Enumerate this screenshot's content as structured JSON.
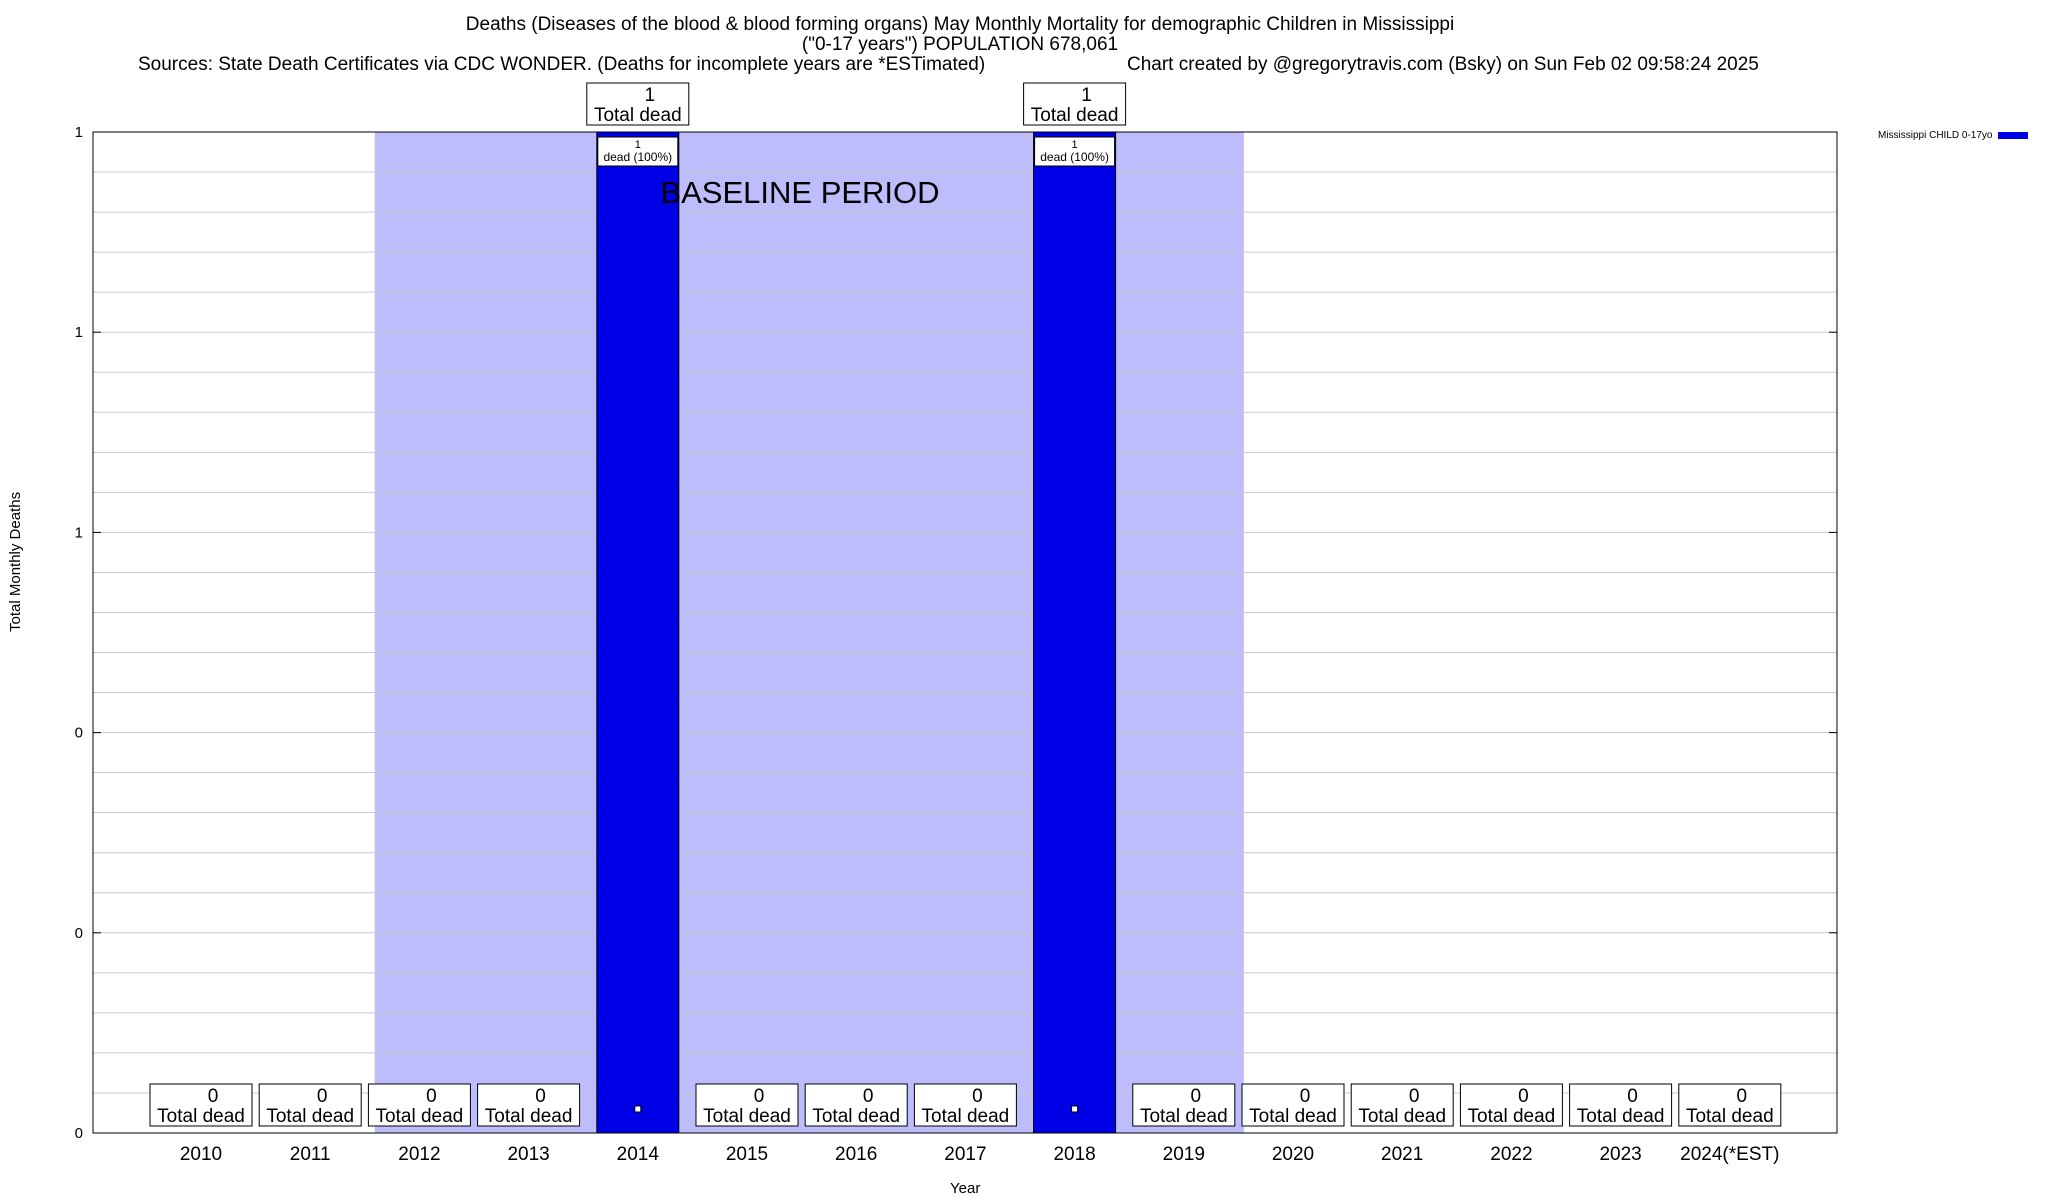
{
  "title": {
    "line1": "Deaths (Diseases of the blood & blood forming organs) May Monthly Mortality for demographic Children in Mississippi",
    "line2": "(\"0-17 years\") POPULATION 678,061",
    "sources": "Sources: State Death Certificates via CDC WONDER. (Deaths for incomplete years are *ESTimated)",
    "credit": "Chart created by @gregorytravis.com (Bsky) on Sun Feb 02 09:58:24 2025"
  },
  "chart_data": {
    "type": "bar",
    "xlabel": "Year",
    "ylabel": "Total Monthly Deaths",
    "ylim": [
      0,
      1
    ],
    "y_tick_labels": [
      "0",
      "0",
      "0",
      "1",
      "1",
      "1"
    ],
    "grid": true,
    "legend_placement": "top-right",
    "categories": [
      "2010",
      "2011",
      "2012",
      "2013",
      "2014",
      "2015",
      "2016",
      "2017",
      "2018",
      "2019",
      "2020",
      "2021",
      "2022",
      "2023",
      "2024(*EST)"
    ],
    "series": [
      {
        "name": "Mississippi CHILD 0-17yo",
        "color": "#0000e6",
        "values": [
          0,
          0,
          0,
          0,
          1,
          0,
          0,
          0,
          1,
          0,
          0,
          0,
          0,
          0,
          0
        ]
      }
    ],
    "total_labels": [
      "0",
      "0",
      "0",
      "0",
      "1",
      "0",
      "0",
      "0",
      "1",
      "0",
      "0",
      "0",
      "0",
      "0",
      "0"
    ],
    "total_suffix": "Total dead",
    "bar_inner_labels": {
      "2014": [
        "1",
        "dead (100%)"
      ],
      "2018": [
        "1",
        "dead (100%)"
      ]
    },
    "baseline_period": {
      "label": "BASELINE PERIOD",
      "from": "2012",
      "to": "2019",
      "color": "#bdbdfb"
    }
  }
}
